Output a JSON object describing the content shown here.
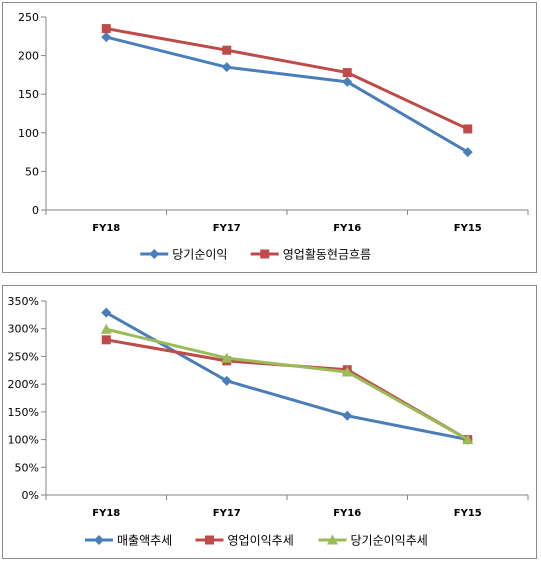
{
  "colors": {
    "blue": "#4a7ebb",
    "red": "#be4b48",
    "green": "#9bbb59",
    "axis": "#868686"
  },
  "chart_data": [
    {
      "type": "line",
      "categories": [
        "FY18",
        "FY17",
        "FY16",
        "FY15"
      ],
      "ylim": [
        0,
        250
      ],
      "yticks": [
        0,
        50,
        100,
        150,
        200,
        250
      ],
      "ytick_labels": [
        "0",
        "50",
        "100",
        "150",
        "200",
        "250"
      ],
      "grid": false,
      "legend_position": "bottom",
      "series": [
        {
          "name": "당기순이익",
          "values": [
            224,
            185,
            166,
            75
          ],
          "color": "#4a7ebb",
          "marker": "diamond"
        },
        {
          "name": "영업활동현금흐름",
          "values": [
            235,
            207,
            178,
            105
          ],
          "color": "#be4b48",
          "marker": "square"
        }
      ]
    },
    {
      "type": "line",
      "categories": [
        "FY18",
        "FY17",
        "FY16",
        "FY15"
      ],
      "ylim": [
        0,
        3.5
      ],
      "yticks": [
        0,
        0.5,
        1,
        1.5,
        2,
        2.5,
        3,
        3.5
      ],
      "ytick_labels": [
        "0%",
        "50%",
        "100%",
        "150%",
        "200%",
        "250%",
        "300%",
        "350%"
      ],
      "grid": false,
      "legend_position": "bottom",
      "series": [
        {
          "name": "매출액추세",
          "values": [
            3.29,
            2.06,
            1.43,
            1.0
          ],
          "color": "#4a7ebb",
          "marker": "diamond"
        },
        {
          "name": "영업이익추세",
          "values": [
            2.8,
            2.42,
            2.26,
            1.0
          ],
          "color": "#be4b48",
          "marker": "square"
        },
        {
          "name": "당기순이익추세",
          "values": [
            2.99,
            2.47,
            2.22,
            1.0
          ],
          "color": "#9bbb59",
          "marker": "triangle"
        }
      ]
    }
  ]
}
